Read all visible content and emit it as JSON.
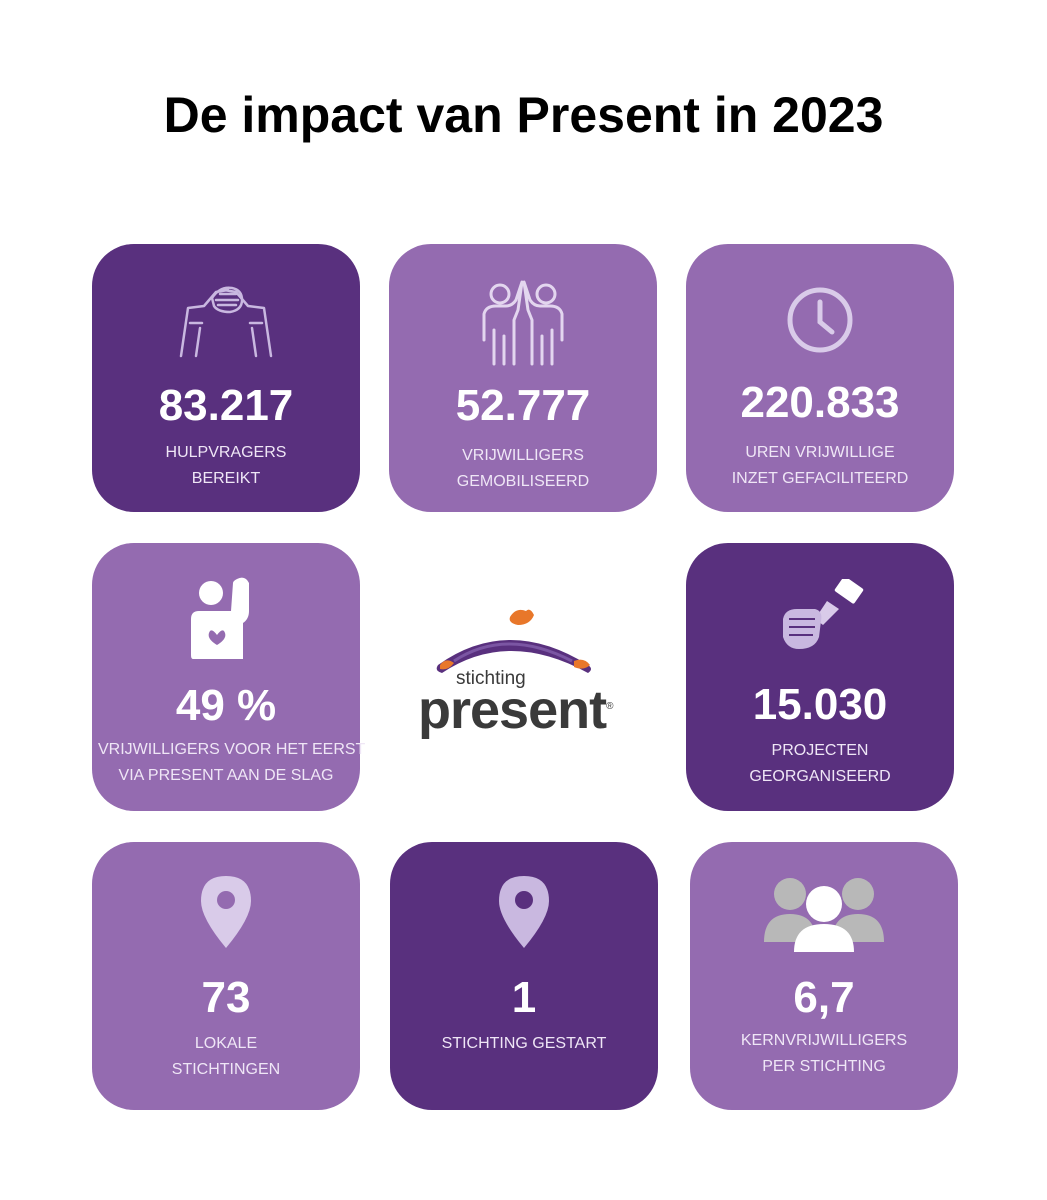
{
  "title": "De impact van Present in 2023",
  "colors": {
    "dark_purple": "#59307e",
    "light_purple": "#946bb0",
    "icon_lilac": "#c9b8e0",
    "logo_orange": "#e8772a",
    "logo_gray": "#3a3a3a"
  },
  "tiles": [
    {
      "value": "83.217",
      "label_lines": [
        "HULPVRAGERS",
        "BEREIKT"
      ],
      "icon": "handshake-icon"
    },
    {
      "value": "52.777",
      "label_lines": [
        "VRIJWILLIGERS",
        "GEMOBILISEERD"
      ],
      "icon": "high-five-icon"
    },
    {
      "value": "220.833",
      "label_lines": [
        "UREN VRIJWILLIGE",
        "INZET GEFACILITEERD"
      ],
      "icon": "clock-icon"
    },
    {
      "value": "49 %",
      "label_lines": [
        "VRIJWILLIGERS  VOOR HET EERST",
        "VIA PRESENT AAN DE SLAG"
      ],
      "icon": "raised-hand-heart-icon"
    },
    {
      "value": "15.030",
      "label_lines": [
        "PROJECTEN",
        "GEORGANISEERD"
      ],
      "icon": "fist-paintbrush-icon"
    },
    {
      "value": "73",
      "label_lines": [
        "LOKALE",
        "STICHTINGEN"
      ],
      "icon": "location-pin-icon"
    },
    {
      "value": "1",
      "label_lines": [
        "STICHTING GESTART"
      ],
      "icon": "location-pin-icon"
    },
    {
      "value": "6,7",
      "label_lines": [
        "KERNVRIJWILLIGERS",
        "PER STICHTING"
      ],
      "icon": "group-people-icon"
    }
  ],
  "logo": {
    "line1": "stichting",
    "line2": "present",
    "mark": "®"
  }
}
